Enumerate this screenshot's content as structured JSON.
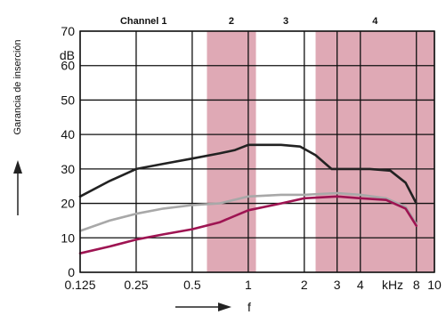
{
  "chart_data": {
    "type": "line",
    "ylabel": "Garancia de inserción",
    "xlabel": "f",
    "y_unit": "dB",
    "x_unit": "kHz",
    "ylim": [
      0,
      70
    ],
    "y_ticks": [
      "0",
      "10",
      "20",
      "30",
      "40",
      "50",
      "60",
      "70"
    ],
    "x_ticks": [
      "0.125",
      "0.25",
      "0.5",
      "1",
      "2",
      "3",
      "4",
      "8",
      "10"
    ],
    "x_tick_values": [
      0.125,
      0.25,
      0.5,
      1,
      2,
      3,
      4,
      8,
      10
    ],
    "x_scale": "log",
    "grid": true,
    "bands": [
      {
        "label": "Channel 1",
        "from": 0.125,
        "to": 0.6,
        "shaded": false
      },
      {
        "label": "2",
        "from": 0.6,
        "to": 1.1,
        "shaded": true
      },
      {
        "label": "3",
        "from": 1.1,
        "to": 2.3,
        "shaded": false
      },
      {
        "label": "4",
        "from": 2.3,
        "to": 10,
        "shaded": true
      }
    ],
    "series": [
      {
        "color": "#222222",
        "x": [
          0.125,
          0.18,
          0.25,
          0.35,
          0.5,
          0.7,
          0.85,
          1,
          1.5,
          1.9,
          2.3,
          2.8,
          3.5,
          4.5,
          5.8,
          7,
          8
        ],
        "y": [
          22,
          26.5,
          30,
          31.5,
          33,
          34.5,
          35.5,
          37,
          37,
          36.5,
          34,
          30,
          30,
          30,
          29.5,
          26,
          20
        ]
      },
      {
        "color": "#a8a8a8",
        "x": [
          0.125,
          0.18,
          0.25,
          0.35,
          0.5,
          0.7,
          1,
          1.5,
          2,
          3,
          4,
          5.5,
          7,
          8
        ],
        "y": [
          12,
          15,
          17,
          18.5,
          19.5,
          20,
          22,
          22.5,
          22.5,
          23,
          22.5,
          21.5,
          19,
          14
        ]
      },
      {
        "color": "#9e1452",
        "x": [
          0.125,
          0.18,
          0.25,
          0.35,
          0.5,
          0.7,
          1,
          1.5,
          2,
          3,
          4,
          5.5,
          7,
          8
        ],
        "y": [
          5.5,
          7.5,
          9.5,
          11,
          12.5,
          14.5,
          18,
          20,
          21.5,
          22,
          21.5,
          21,
          18.5,
          13.5
        ]
      }
    ],
    "colors": {
      "band": "#dfa9b5",
      "grid": "#111111",
      "axis_arrow": "#222222"
    }
  }
}
